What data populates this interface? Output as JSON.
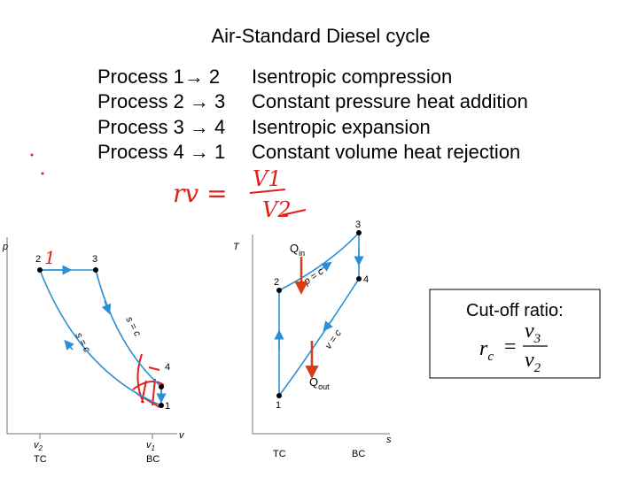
{
  "title": "Air-Standard Diesel cycle",
  "processes": [
    {
      "label": "Process 1→ 2",
      "description": "Isentropic compression"
    },
    {
      "label": "Process 2 → 3",
      "description": "Constant pressure heat addition"
    },
    {
      "label": "Process 3 → 4",
      "description": "Isentropic expansion"
    },
    {
      "label": "Process 4 → 1",
      "description": "Constant volume heat rejection"
    }
  ],
  "handwritten": {
    "lhs": "rv =",
    "numerator": "V1",
    "denominator": "V2",
    "mark": "1"
  },
  "pv_diagram": {
    "y_axis": "p",
    "x_axis": "v",
    "points": [
      "1",
      "2",
      "3",
      "4"
    ],
    "curve_labels": [
      "s = c",
      "s = c"
    ],
    "x_ticks": [
      {
        "symbol": "v",
        "sub": "2",
        "label": "TC"
      },
      {
        "symbol": "v",
        "sub": "1",
        "label": "BC"
      }
    ]
  },
  "ts_diagram": {
    "y_axis": "T",
    "x_axis": "s",
    "points": [
      "1",
      "2",
      "3",
      "4"
    ],
    "curve_labels": [
      "p = c",
      "v = c"
    ],
    "x_ticks": [
      "TC",
      "BC"
    ]
  },
  "heat": {
    "in": {
      "symbol": "Q",
      "sub": "in"
    },
    "out": {
      "symbol": "Q",
      "sub": "out"
    }
  },
  "cutoff": {
    "label": "Cut-off ratio:",
    "lhs": "r",
    "lhs_sub": "c",
    "equals": "=",
    "num": "v",
    "num_sub": "3",
    "den": "v",
    "den_sub": "2"
  }
}
